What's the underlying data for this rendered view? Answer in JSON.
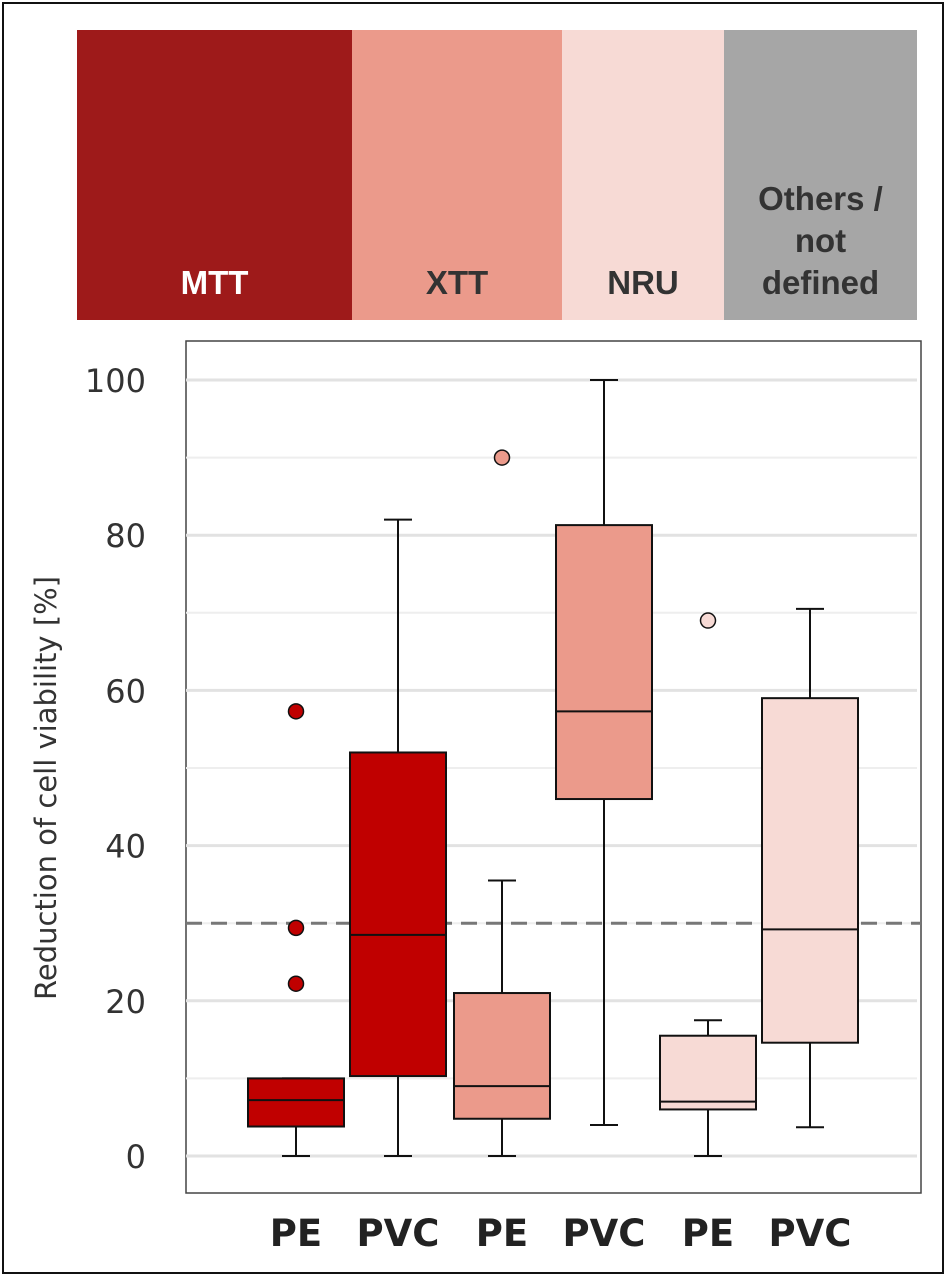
{
  "legend_bands": [
    {
      "label": "MTT",
      "color": "#9e1a1a",
      "text_color": "#ffffff"
    },
    {
      "label": "XTT",
      "color": "#eb9a8b",
      "text_color": "#333333"
    },
    {
      "label": "NRU",
      "color": "#f7dad5",
      "text_color": "#333333"
    },
    {
      "label": "Others /\nnot\ndefined",
      "color": "#a6a6a6",
      "text_color": "#333333"
    }
  ],
  "chart_data": {
    "type": "boxplot",
    "ylabel": "Reduction of cell viability  [%]",
    "ylim": [
      0,
      105
    ],
    "yticks": [
      0,
      20,
      40,
      60,
      80,
      100
    ],
    "minor_gridlines": [
      10,
      30,
      50,
      70,
      90
    ],
    "grid": true,
    "threshold_line": 30,
    "categories": [
      "PE",
      "PVC",
      "PE",
      "PVC",
      "PE",
      "PVC"
    ],
    "boxes": [
      {
        "label": "PE",
        "assay": "MTT",
        "color": "#c00000",
        "min": 0,
        "q1": 3.8,
        "median": 7.2,
        "q3": 10,
        "max": 10,
        "outliers": [
          22.2,
          29.4,
          57.3
        ]
      },
      {
        "label": "PVC",
        "assay": "MTT",
        "color": "#c00000",
        "min": 0,
        "q1": 10.3,
        "median": 28.5,
        "q3": 52,
        "max": 82,
        "outliers": []
      },
      {
        "label": "PE",
        "assay": "XTT",
        "color": "#eb9a8b",
        "min": 0,
        "q1": 4.8,
        "median": 9,
        "q3": 21,
        "max": 35.5,
        "outliers": [
          90
        ]
      },
      {
        "label": "PVC",
        "assay": "XTT",
        "color": "#eb9a8b",
        "min": 4,
        "q1": 46,
        "median": 57.3,
        "q3": 81.3,
        "max": 100,
        "outliers": []
      },
      {
        "label": "PE",
        "assay": "NRU",
        "color": "#f7dad5",
        "min": 0,
        "q1": 6,
        "median": 7,
        "q3": 15.5,
        "max": 17.5,
        "outliers": [
          69
        ]
      },
      {
        "label": "PVC",
        "assay": "NRU",
        "color": "#f7dad5",
        "min": 3.7,
        "q1": 14.6,
        "median": 29.2,
        "q3": 59,
        "max": 70.5,
        "outliers": []
      }
    ]
  }
}
